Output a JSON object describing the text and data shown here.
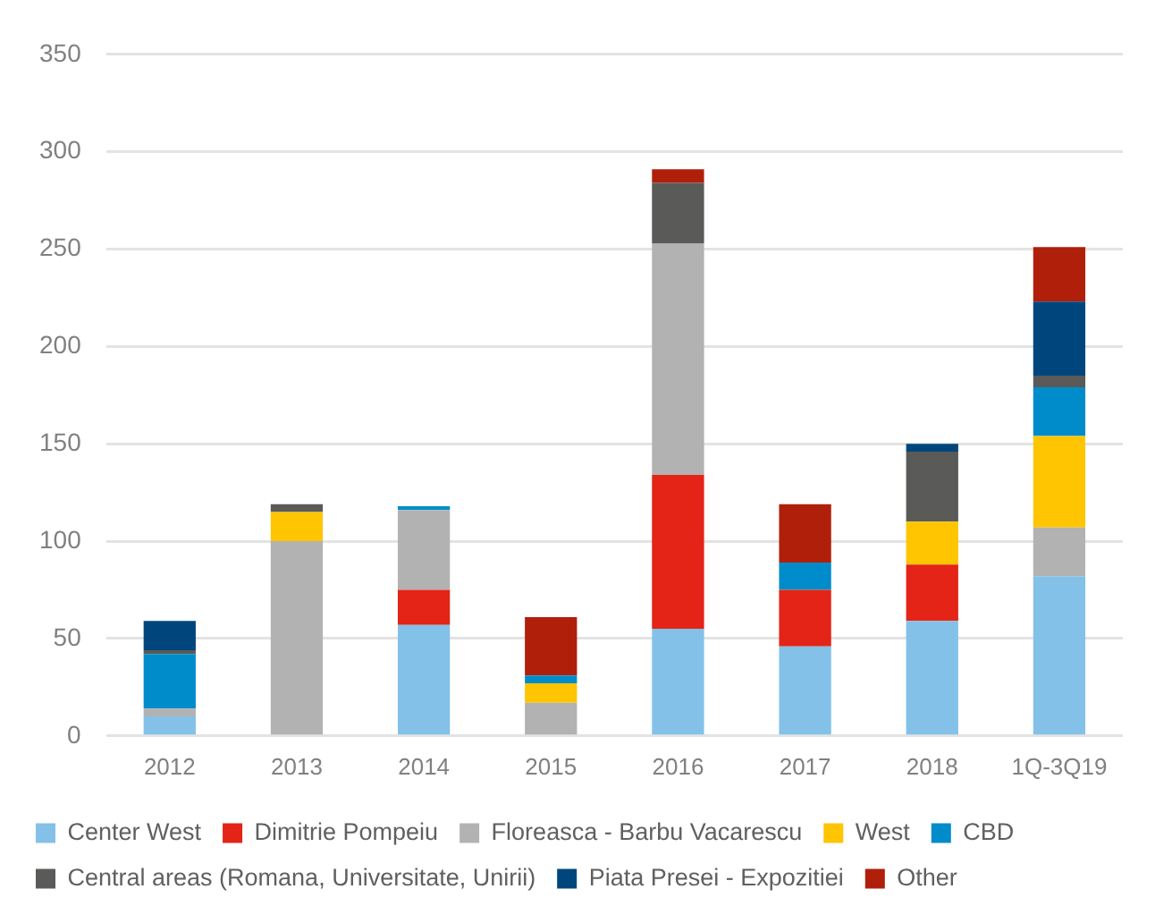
{
  "chart_data": {
    "type": "bar",
    "stacked": true,
    "categories": [
      "2012",
      "2013",
      "2014",
      "2015",
      "2016",
      "2017",
      "2018",
      "1Q-3Q19"
    ],
    "series": [
      {
        "name": "Center West",
        "color": "#83c1e8",
        "values": [
          10,
          null,
          57,
          null,
          55,
          46,
          59,
          82
        ]
      },
      {
        "name": "Dimitrie Pompeiu",
        "color": "#e32416",
        "values": [
          null,
          null,
          18,
          null,
          79,
          29,
          29,
          null
        ]
      },
      {
        "name": "Floreasca - Barbu Vacarescu",
        "color": "#b2b2b2",
        "values": [
          4,
          100,
          41,
          17,
          119,
          null,
          null,
          25
        ]
      },
      {
        "name": "West",
        "color": "#fec500",
        "values": [
          null,
          15,
          null,
          10,
          null,
          null,
          22,
          47
        ]
      },
      {
        "name": "CBD",
        "color": "#008ccb",
        "values": [
          28,
          null,
          2,
          4,
          null,
          14,
          null,
          25
        ]
      },
      {
        "name": "Central areas (Romana, Universitate, Unirii)",
        "color": "#5a5a59",
        "values": [
          2,
          4,
          null,
          null,
          31,
          null,
          36,
          6
        ]
      },
      {
        "name": "Piata Presei - Expozitiei",
        "color": "#00467c",
        "values": [
          15,
          null,
          null,
          null,
          null,
          null,
          4,
          38
        ]
      },
      {
        "name": "Other",
        "color": "#b01f0a",
        "values": [
          null,
          null,
          null,
          30,
          7,
          30,
          null,
          28
        ]
      }
    ],
    "ylim": [
      0,
      350
    ],
    "yticks": [
      0,
      50,
      100,
      150,
      200,
      250,
      300,
      350
    ],
    "grid": "y",
    "legend": "bottom"
  }
}
